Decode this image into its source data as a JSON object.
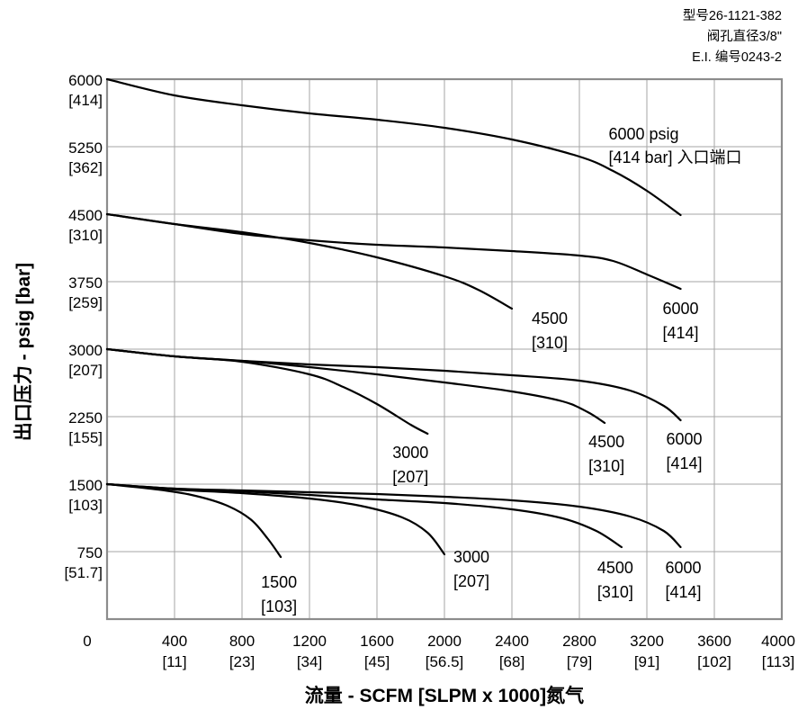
{
  "chart_data": {
    "type": "line",
    "xlabel": "流量 - SCFM [SLPM x 1000]氮气",
    "ylabel": "出口压力 - psig [bar]",
    "xlim": [
      0,
      4000
    ],
    "ylim": [
      0,
      6000
    ],
    "grid": true,
    "notes": [
      "型号26-1121-382",
      "阀孔直径3/8\"",
      "E.I. 编号0243-2"
    ],
    "x_ticks": [
      {
        "value": 0,
        "label": "0",
        "sub": ""
      },
      {
        "value": 400,
        "label": "400",
        "sub": "[11]"
      },
      {
        "value": 800,
        "label": "800",
        "sub": "[23]"
      },
      {
        "value": 1200,
        "label": "1200",
        "sub": "[34]"
      },
      {
        "value": 1600,
        "label": "1600",
        "sub": "[45]"
      },
      {
        "value": 2000,
        "label": "2000",
        "sub": "[56.5]"
      },
      {
        "value": 2400,
        "label": "2400",
        "sub": "[68]"
      },
      {
        "value": 2800,
        "label": "2800",
        "sub": "[79]"
      },
      {
        "value": 3200,
        "label": "3200",
        "sub": "[91]"
      },
      {
        "value": 3600,
        "label": "3600",
        "sub": "[102]"
      },
      {
        "value": 4000,
        "label": "4000",
        "sub": "[113]"
      }
    ],
    "y_ticks": [
      {
        "value": 6000,
        "label": "6000",
        "sub": "[414]"
      },
      {
        "value": 5250,
        "label": "5250",
        "sub": "[362]"
      },
      {
        "value": 4500,
        "label": "4500",
        "sub": "[310]"
      },
      {
        "value": 3750,
        "label": "3750",
        "sub": "[259]"
      },
      {
        "value": 3000,
        "label": "3000",
        "sub": "[207]"
      },
      {
        "value": 2250,
        "label": "2250",
        "sub": "[155]"
      },
      {
        "value": 1500,
        "label": "1500",
        "sub": "[103]"
      },
      {
        "value": 750,
        "label": "750",
        "sub": "[51.7]"
      }
    ],
    "series": [
      {
        "name": "6000 psig [414 bar] 入口端口",
        "label_lines": [
          "6000 psig",
          "[414 bar] 入口端口"
        ],
        "label_anchor": "start",
        "points": [
          [
            0,
            6000
          ],
          [
            400,
            5820
          ],
          [
            800,
            5710
          ],
          [
            1200,
            5620
          ],
          [
            1600,
            5550
          ],
          [
            2000,
            5460
          ],
          [
            2400,
            5330
          ],
          [
            2800,
            5140
          ],
          [
            3000,
            4980
          ],
          [
            3200,
            4760
          ],
          [
            3400,
            4490
          ]
        ]
      },
      {
        "name": "6000 [414]",
        "label_lines": [
          "6000",
          "[414]"
        ],
        "label_anchor": "middle",
        "points": [
          [
            0,
            4500
          ],
          [
            400,
            4390
          ],
          [
            800,
            4280
          ],
          [
            1200,
            4210
          ],
          [
            1600,
            4160
          ],
          [
            2000,
            4130
          ],
          [
            2400,
            4090
          ],
          [
            2800,
            4040
          ],
          [
            3000,
            3980
          ],
          [
            3200,
            3830
          ],
          [
            3400,
            3670
          ]
        ]
      },
      {
        "name": "4500 [310]",
        "label_lines": [
          "4500",
          "[310]"
        ],
        "label_anchor": "middle",
        "points": [
          [
            0,
            4500
          ],
          [
            400,
            4390
          ],
          [
            800,
            4300
          ],
          [
            1200,
            4180
          ],
          [
            1600,
            4020
          ],
          [
            2000,
            3810
          ],
          [
            2200,
            3660
          ],
          [
            2400,
            3450
          ]
        ]
      },
      {
        "name": "6000 [414]",
        "label_lines": [
          "6000",
          "[414]"
        ],
        "label_anchor": "middle",
        "points": [
          [
            0,
            3000
          ],
          [
            400,
            2920
          ],
          [
            800,
            2870
          ],
          [
            1200,
            2830
          ],
          [
            1600,
            2800
          ],
          [
            2000,
            2760
          ],
          [
            2400,
            2710
          ],
          [
            2800,
            2650
          ],
          [
            3100,
            2540
          ],
          [
            3300,
            2370
          ],
          [
            3400,
            2210
          ]
        ]
      },
      {
        "name": "4500 [310]",
        "label_lines": [
          "4500",
          "[310]"
        ],
        "label_anchor": "middle",
        "points": [
          [
            0,
            3000
          ],
          [
            400,
            2920
          ],
          [
            800,
            2870
          ],
          [
            1200,
            2800
          ],
          [
            1600,
            2720
          ],
          [
            2000,
            2630
          ],
          [
            2400,
            2530
          ],
          [
            2700,
            2420
          ],
          [
            2850,
            2300
          ],
          [
            2950,
            2180
          ]
        ]
      },
      {
        "name": "3000 [207]",
        "label_lines": [
          "3000",
          "[207]"
        ],
        "label_anchor": "middle",
        "points": [
          [
            0,
            3000
          ],
          [
            400,
            2920
          ],
          [
            800,
            2860
          ],
          [
            1200,
            2720
          ],
          [
            1400,
            2580
          ],
          [
            1600,
            2390
          ],
          [
            1800,
            2160
          ],
          [
            1900,
            2060
          ]
        ]
      },
      {
        "name": "6000 [414]",
        "label_lines": [
          "6000",
          "[414]"
        ],
        "label_anchor": "middle",
        "points": [
          [
            0,
            1500
          ],
          [
            400,
            1450
          ],
          [
            800,
            1430
          ],
          [
            1200,
            1410
          ],
          [
            1600,
            1390
          ],
          [
            2000,
            1360
          ],
          [
            2400,
            1320
          ],
          [
            2800,
            1250
          ],
          [
            3100,
            1140
          ],
          [
            3300,
            980
          ],
          [
            3400,
            800
          ]
        ]
      },
      {
        "name": "4500 [310]",
        "label_lines": [
          "4500",
          "[310]"
        ],
        "label_anchor": "middle",
        "points": [
          [
            0,
            1500
          ],
          [
            400,
            1450
          ],
          [
            800,
            1420
          ],
          [
            1200,
            1380
          ],
          [
            1600,
            1330
          ],
          [
            2000,
            1290
          ],
          [
            2400,
            1220
          ],
          [
            2700,
            1120
          ],
          [
            2900,
            980
          ],
          [
            3050,
            800
          ]
        ]
      },
      {
        "name": "3000 [207]",
        "label_lines": [
          "3000",
          "[207]"
        ],
        "label_anchor": "middle",
        "points": [
          [
            0,
            1500
          ],
          [
            400,
            1440
          ],
          [
            800,
            1400
          ],
          [
            1200,
            1340
          ],
          [
            1500,
            1260
          ],
          [
            1750,
            1130
          ],
          [
            1900,
            960
          ],
          [
            2000,
            720
          ]
        ]
      },
      {
        "name": "1500 [103]",
        "label_lines": [
          "1500",
          "[103]"
        ],
        "label_anchor": "middle",
        "points": [
          [
            0,
            1500
          ],
          [
            300,
            1440
          ],
          [
            500,
            1380
          ],
          [
            700,
            1270
          ],
          [
            850,
            1110
          ],
          [
            950,
            900
          ],
          [
            1030,
            690
          ]
        ]
      }
    ]
  }
}
